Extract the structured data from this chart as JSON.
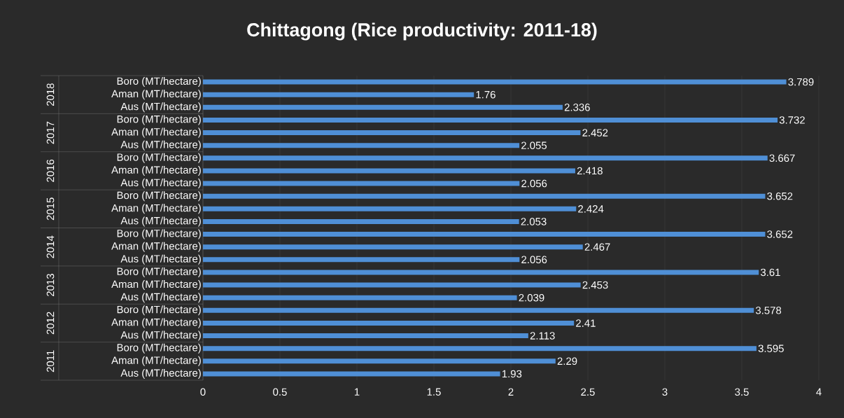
{
  "chart_data": {
    "type": "bar",
    "orientation": "horizontal",
    "title": "Chittagong (Rice productivity: 2011-18)",
    "categories": [
      "Boro (MT/hectare)",
      "Aman (MT/hectare)",
      "Aus (MT/hectare)",
      "Boro (MT/hectare)",
      "Aman (MT/hectare)",
      "Aus (MT/hectare)",
      "Boro (MT/hectare)",
      "Aman (MT/hectare)",
      "Aus (MT/hectare)",
      "Boro (MT/hectare)",
      "Aman (MT/hectare)",
      "Aus (MT/hectare)",
      "Boro (MT/hectare)",
      "Aman (MT/hectare)",
      "Aus (MT/hectare)",
      "Boro (MT/hectare)",
      "Aman (MT/hectare)",
      "Aus (MT/hectare)",
      "Boro (MT/hectare)",
      "Aman (MT/hectare)",
      "Aus (MT/hectare)",
      "Boro (MT/hectare)",
      "Aman (MT/hectare)",
      "Aus (MT/hectare)"
    ],
    "values": [
      3.789,
      1.76,
      2.336,
      3.732,
      2.452,
      2.055,
      3.667,
      2.418,
      2.056,
      3.652,
      2.424,
      2.053,
      3.652,
      2.467,
      2.056,
      3.61,
      2.453,
      2.039,
      3.578,
      2.41,
      2.113,
      3.595,
      2.29,
      1.93
    ],
    "value_labels": [
      "3.789",
      "1.76",
      "2.336",
      "3.732",
      "2.452",
      "2.055",
      "3.667",
      "2.418",
      "2.056",
      "3.652",
      "2.424",
      "2.053",
      "3.652",
      "2.467",
      "2.056",
      "3.61",
      "2.453",
      "2.039",
      "3.578",
      "2.41",
      "2.113",
      "3.595",
      "2.29",
      "1.93"
    ],
    "annotations": [
      "2018",
      "2017",
      "2016",
      "2015",
      "2014",
      "2013",
      "2012",
      "2011"
    ],
    "color": "#4f8fd6",
    "xlim": [
      0,
      4
    ],
    "xticks": [
      0,
      0.5,
      1,
      1.5,
      2,
      2.5,
      3,
      3.5,
      4
    ],
    "grid": "x"
  }
}
